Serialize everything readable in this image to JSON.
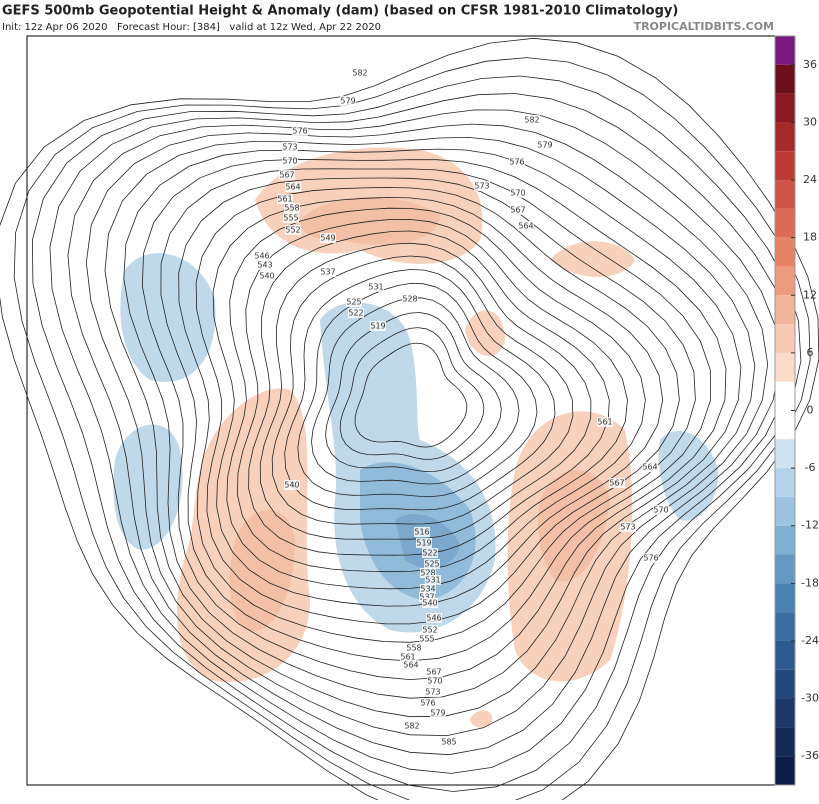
{
  "header": {
    "title": "GEFS 500mb Geopotential Height & Anomaly (dam) (based on CFSR 1981-2010 Climatology)",
    "subtitle": "Init: 12z Apr 06 2020   Forecast Hour: [384]   valid at 12z Wed, Apr 22 2020",
    "credit": "TROPICALTIDBITS.COM"
  },
  "colorbar": {
    "lim": [
      -39,
      39
    ],
    "ticks": [
      36,
      30,
      24,
      18,
      12,
      6,
      0,
      -6,
      -12,
      -18,
      -24,
      -30,
      -36
    ],
    "bands": [
      {
        "from": 36,
        "to": 39,
        "color": "#7a1a80"
      },
      {
        "from": 33,
        "to": 36,
        "color": "#6b0f1a"
      },
      {
        "from": 30,
        "to": 33,
        "color": "#8b1a24"
      },
      {
        "from": 27,
        "to": 30,
        "color": "#a52a2a"
      },
      {
        "from": 24,
        "to": 27,
        "color": "#bd3b35"
      },
      {
        "from": 21,
        "to": 24,
        "color": "#cf5246"
      },
      {
        "from": 18,
        "to": 21,
        "color": "#dc6b55"
      },
      {
        "from": 15,
        "to": 18,
        "color": "#e58566"
      },
      {
        "from": 12,
        "to": 15,
        "color": "#ec9c7e"
      },
      {
        "from": 9,
        "to": 12,
        "color": "#f2b498"
      },
      {
        "from": 6,
        "to": 9,
        "color": "#f7c9b2"
      },
      {
        "from": 3,
        "to": 6,
        "color": "#fbdccb"
      },
      {
        "from": -3,
        "to": 3,
        "color": "#ffffff"
      },
      {
        "from": -6,
        "to": -3,
        "color": "#cfe3f0"
      },
      {
        "from": -9,
        "to": -6,
        "color": "#b5d3e8"
      },
      {
        "from": -12,
        "to": -9,
        "color": "#9cc4df"
      },
      {
        "from": -15,
        "to": -12,
        "color": "#7fb0d4"
      },
      {
        "from": -18,
        "to": -15,
        "color": "#6499c4"
      },
      {
        "from": -21,
        "to": -18,
        "color": "#4a82b4"
      },
      {
        "from": -24,
        "to": -21,
        "color": "#3a6ea3"
      },
      {
        "from": -27,
        "to": -24,
        "color": "#2c5a90"
      },
      {
        "from": -30,
        "to": -27,
        "color": "#23487c"
      },
      {
        "from": -33,
        "to": -30,
        "color": "#1b3868"
      },
      {
        "from": -36,
        "to": -33,
        "color": "#142a55"
      },
      {
        "from": -39,
        "to": -36,
        "color": "#0d1d45"
      }
    ]
  },
  "contour_labels": [
    582,
    579,
    576,
    573,
    570,
    567,
    564,
    561,
    558,
    555,
    552,
    549,
    546,
    543,
    540,
    537,
    531,
    528,
    525,
    522,
    519,
    582,
    579,
    576,
    573,
    570,
    567,
    564,
    561,
    564,
    567,
    570,
    573,
    576,
    540,
    516,
    519,
    522,
    525,
    528,
    531,
    534,
    537,
    540,
    546,
    552,
    555,
    558,
    561,
    564,
    567,
    570,
    573,
    576,
    579,
    582,
    585
  ]
}
